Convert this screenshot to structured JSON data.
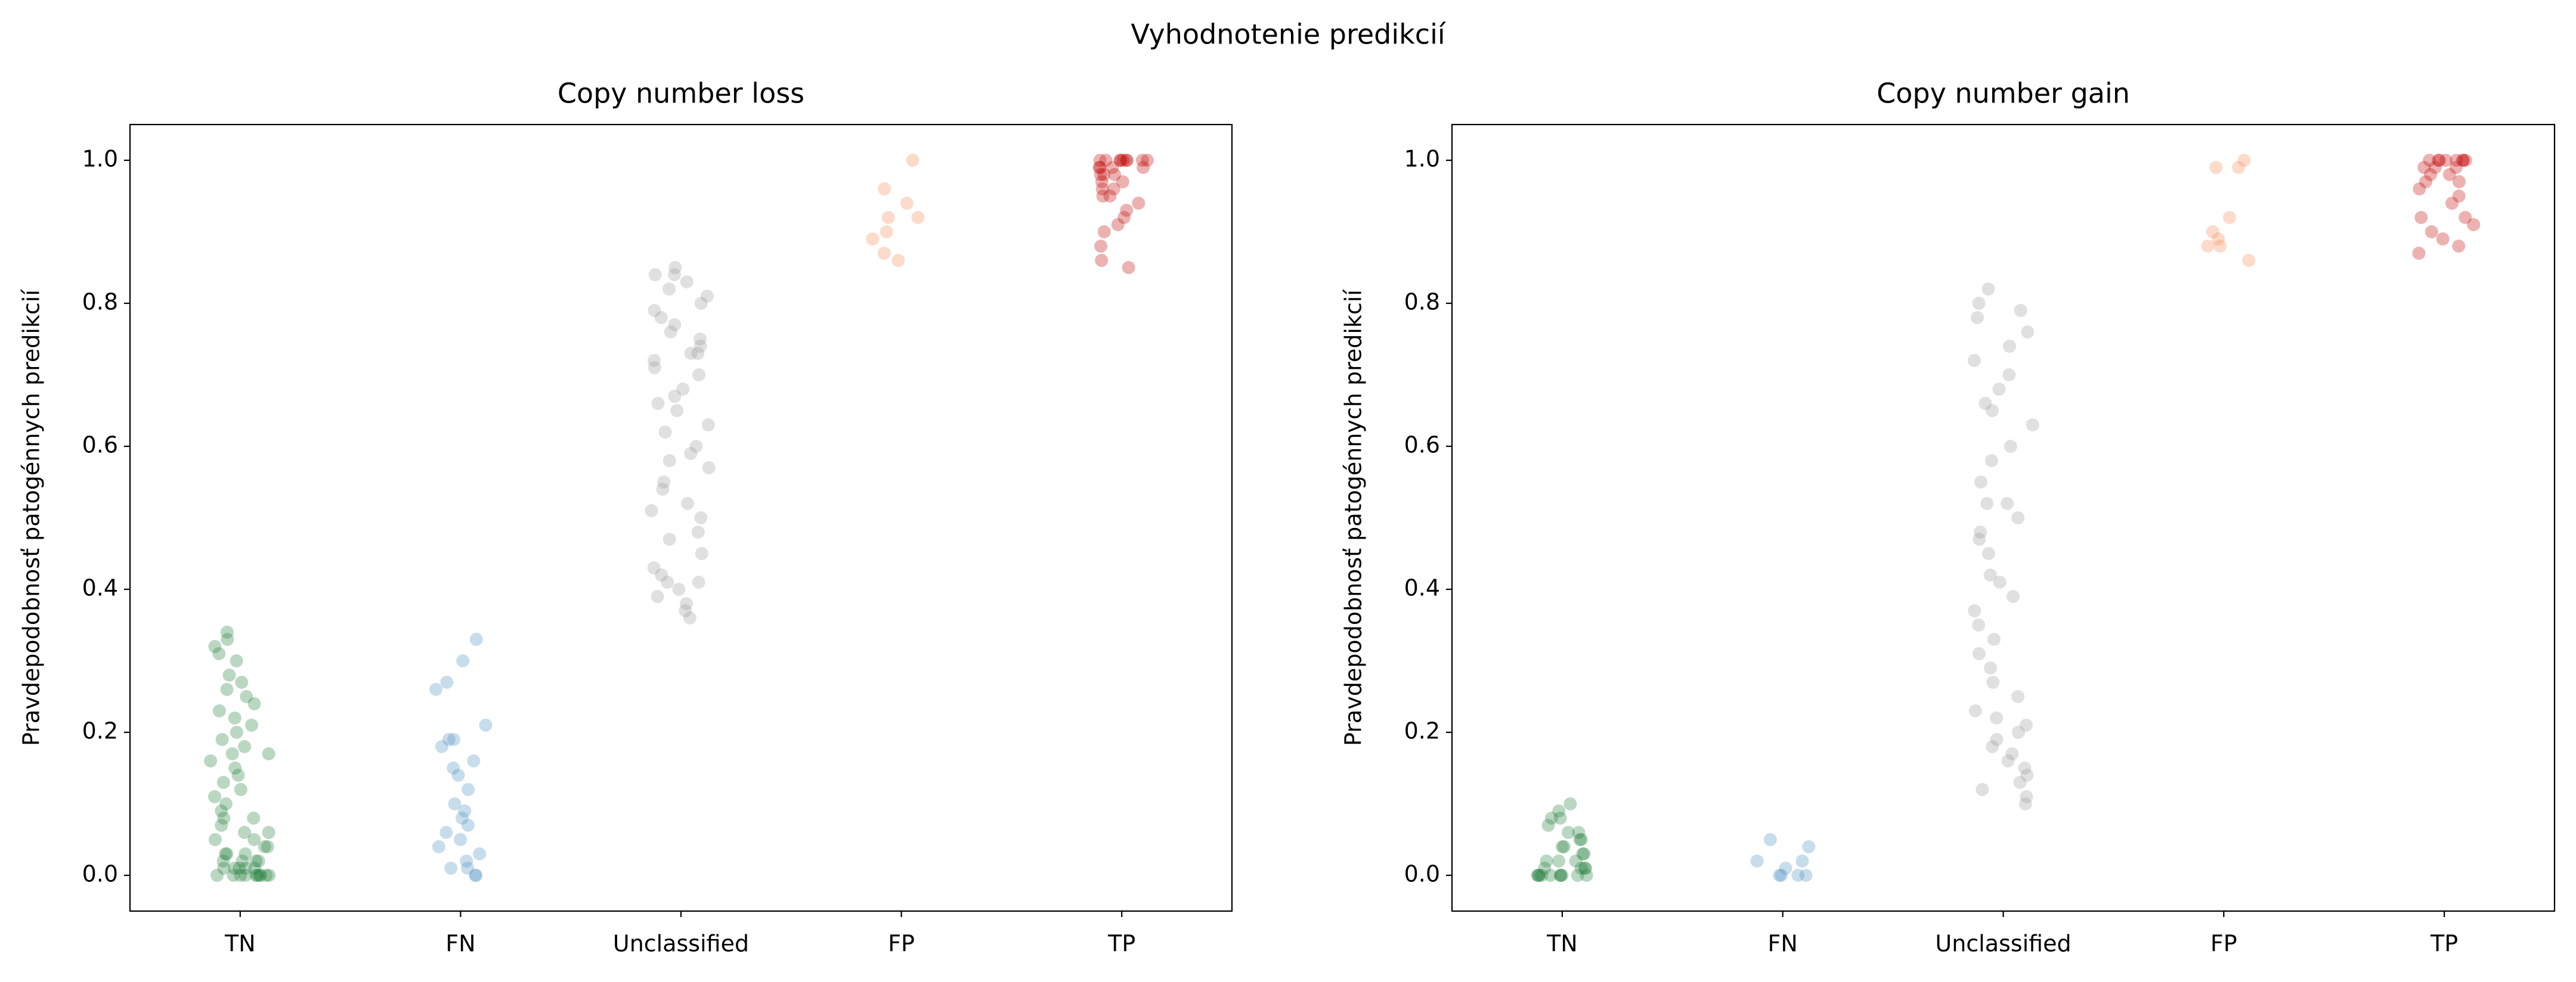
{
  "title": "Vyhodnotenie predikcií",
  "chart_data": [
    {
      "type": "strip",
      "title": "Copy number loss",
      "ylabel": "Pravdepodobnosť patogénnych predikcií",
      "categories": [
        "TN",
        "FN",
        "Unclassified",
        "FP",
        "TP"
      ],
      "colors": [
        "#1b7c36",
        "#4a90bf",
        "#999999",
        "#f4894f",
        "#c00000"
      ],
      "values": [
        [
          0,
          0,
          0,
          0,
          0,
          0,
          0,
          0,
          0,
          0,
          0.01,
          0.01,
          0.01,
          0.01,
          0.01,
          0.02,
          0.02,
          0.02,
          0.02,
          0.03,
          0.03,
          0.03,
          0.04,
          0.04,
          0.05,
          0.05,
          0.06,
          0.06,
          0.07,
          0.08,
          0.08,
          0.09,
          0.1,
          0.11,
          0.12,
          0.13,
          0.14,
          0.15,
          0.16,
          0.17,
          0.17,
          0.18,
          0.19,
          0.2,
          0.21,
          0.22,
          0.23,
          0.24,
          0.25,
          0.26,
          0.27,
          0.28,
          0.3,
          0.31,
          0.32,
          0.33,
          0.34
        ],
        [
          0,
          0,
          0.01,
          0.01,
          0.02,
          0.03,
          0.04,
          0.05,
          0.06,
          0.07,
          0.08,
          0.09,
          0.1,
          0.12,
          0.14,
          0.15,
          0.16,
          0.18,
          0.19,
          0.19,
          0.21,
          0.26,
          0.27,
          0.3,
          0.33
        ],
        [
          0.36,
          0.37,
          0.38,
          0.39,
          0.4,
          0.41,
          0.41,
          0.42,
          0.43,
          0.45,
          0.47,
          0.48,
          0.5,
          0.51,
          0.52,
          0.54,
          0.55,
          0.57,
          0.58,
          0.59,
          0.6,
          0.62,
          0.63,
          0.65,
          0.66,
          0.67,
          0.68,
          0.7,
          0.71,
          0.72,
          0.73,
          0.73,
          0.74,
          0.75,
          0.76,
          0.77,
          0.78,
          0.79,
          0.8,
          0.81,
          0.82,
          0.83,
          0.84,
          0.84,
          0.85
        ],
        [
          0.86,
          0.87,
          0.89,
          0.9,
          0.92,
          0.92,
          0.94,
          0.96,
          1
        ],
        [
          0.85,
          0.86,
          0.88,
          0.9,
          0.91,
          0.92,
          0.93,
          0.94,
          0.95,
          0.95,
          0.96,
          0.96,
          0.97,
          0.97,
          0.98,
          0.98,
          0.98,
          0.99,
          0.99,
          0.99,
          0.99,
          1,
          1,
          1,
          1,
          1,
          1,
          1,
          1,
          1
        ]
      ],
      "ylim": [
        -0.05,
        1.05
      ],
      "yticks": [
        {
          "value": 0,
          "label": "0.0"
        },
        0.2,
        0.4,
        0.6,
        0.8,
        {
          "value": 1,
          "label": "1.0"
        }
      ]
    },
    {
      "type": "strip",
      "title": "Copy number gain",
      "ylabel": "Pravdepodobnosť patogénnych predikcií",
      "categories": [
        "TN",
        "FN",
        "Unclassified",
        "FP",
        "TP"
      ],
      "colors": [
        "#1b7c36",
        "#4a90bf",
        "#999999",
        "#f4894f",
        "#c00000"
      ],
      "values": [
        [
          0,
          0,
          0,
          0,
          0,
          0,
          0,
          0,
          0,
          0,
          0.01,
          0.01,
          0.01,
          0.01,
          0.02,
          0.02,
          0.02,
          0.03,
          0.03,
          0.04,
          0.04,
          0.05,
          0.05,
          0.06,
          0.06,
          0.07,
          0.08,
          0.08,
          0.09,
          0.1
        ],
        [
          0,
          0,
          0,
          0,
          0.01,
          0.02,
          0.02,
          0.04,
          0.05
        ],
        [
          0.1,
          0.11,
          0.12,
          0.13,
          0.14,
          0.15,
          0.16,
          0.17,
          0.18,
          0.19,
          0.2,
          0.21,
          0.22,
          0.23,
          0.25,
          0.27,
          0.29,
          0.31,
          0.33,
          0.35,
          0.37,
          0.39,
          0.41,
          0.42,
          0.45,
          0.47,
          0.48,
          0.5,
          0.52,
          0.52,
          0.55,
          0.58,
          0.6,
          0.63,
          0.65,
          0.66,
          0.68,
          0.7,
          0.72,
          0.74,
          0.76,
          0.78,
          0.79,
          0.8,
          0.82
        ],
        [
          0.86,
          0.88,
          0.88,
          0.89,
          0.9,
          0.92,
          0.99,
          0.99,
          1
        ],
        [
          0.87,
          0.88,
          0.89,
          0.9,
          0.91,
          0.92,
          0.92,
          0.94,
          0.95,
          0.96,
          0.97,
          0.97,
          0.98,
          0.98,
          0.99,
          0.99,
          0.99,
          1,
          1,
          1,
          1,
          1,
          1,
          1,
          1
        ]
      ],
      "ylim": [
        -0.05,
        1.05
      ],
      "yticks": [
        {
          "value": 0,
          "label": "0.0"
        },
        0.2,
        0.4,
        0.6,
        0.8,
        {
          "value": 1,
          "label": "1.0"
        }
      ]
    }
  ]
}
